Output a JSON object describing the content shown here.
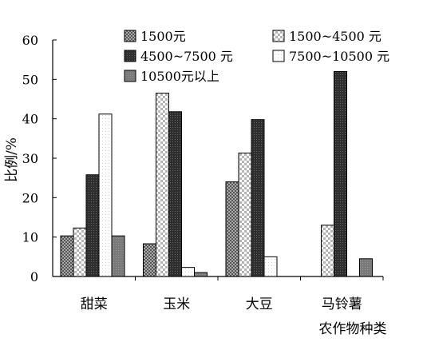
{
  "chart_data": {
    "type": "bar",
    "xlabel": "农作物种类",
    "ylabel": "比例/%",
    "ylim": [
      0,
      60
    ],
    "yticks": [
      0,
      10,
      20,
      30,
      40,
      50,
      60
    ],
    "grid": false,
    "legend_placement": "top",
    "legend_columns": 2,
    "categories": [
      "甜菜",
      "玉米",
      "大豆",
      "马铃薯"
    ],
    "series": [
      {
        "name": "1500元",
        "values": [
          10.3,
          8.3,
          24.0,
          0
        ],
        "pattern": "dotted",
        "color": "#8a8a8a"
      },
      {
        "name": "1500~4500 元",
        "values": [
          12.3,
          46.5,
          31.3,
          13.0
        ],
        "pattern": "checker",
        "color": "#d8d8d8"
      },
      {
        "name": "4500~7500 元",
        "values": [
          25.8,
          41.8,
          39.8,
          52.0
        ],
        "pattern": "dark",
        "color": "#3a3a3a"
      },
      {
        "name": "7500~10500 元",
        "values": [
          41.2,
          2.3,
          5.0,
          0
        ],
        "pattern": "light",
        "color": "#f4f4f4"
      },
      {
        "name": "10500元以上",
        "values": [
          10.3,
          1.0,
          0,
          4.5
        ],
        "pattern": "gray",
        "color": "#808080"
      }
    ]
  }
}
